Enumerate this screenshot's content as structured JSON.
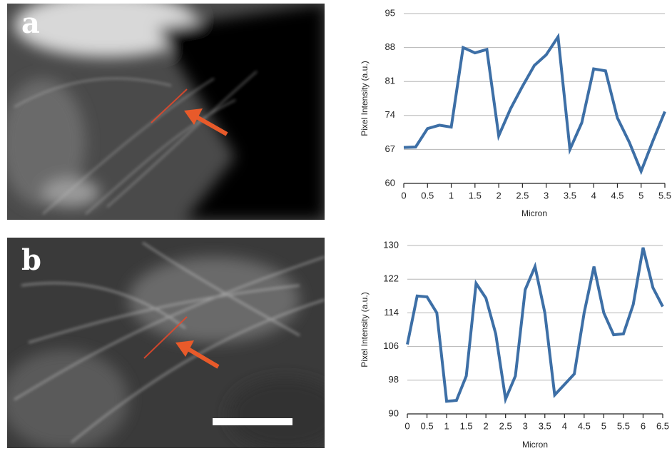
{
  "panel_labels": [
    "a",
    "b"
  ],
  "chart_data": [
    {
      "type": "line",
      "ylabel": "Pixel Intensity (a.u.)",
      "xlabel": "Micron",
      "x": [
        0,
        0.25,
        0.5,
        0.75,
        1,
        1.25,
        1.5,
        1.75,
        2,
        2.25,
        2.5,
        2.75,
        3,
        3.25,
        3.5,
        3.75,
        4,
        4.25,
        4.5,
        4.75,
        5,
        5.25,
        5.5
      ],
      "values": [
        67.4,
        67.5,
        71.3,
        72,
        71.6,
        88,
        86.9,
        87.6,
        69.8,
        75.4,
        80,
        84.3,
        86.5,
        90.2,
        67,
        72.5,
        83.6,
        83.2,
        73.5,
        68.5,
        62.5,
        68.8,
        74.8
      ],
      "color": "#3d6fa6",
      "xlim": [
        0,
        5.5
      ],
      "xticks": [
        0,
        0.5,
        1,
        1.5,
        2,
        2.5,
        3,
        3.5,
        4,
        4.5,
        5,
        5.5
      ],
      "ylim": [
        60,
        95
      ],
      "yticks": [
        60,
        67,
        74,
        81,
        88,
        95
      ],
      "grid": true
    },
    {
      "type": "line",
      "ylabel": "Pixel Intensity (a.u.)",
      "xlabel": "Micron",
      "x": [
        0,
        0.25,
        0.5,
        0.75,
        1,
        1.25,
        1.5,
        1.75,
        2,
        2.25,
        2.5,
        2.75,
        3,
        3.25,
        3.5,
        3.75,
        4,
        4.25,
        4.5,
        4.75,
        5,
        5.25,
        5.5,
        5.75,
        6,
        6.25,
        6.5
      ],
      "values": [
        106.5,
        118,
        117.8,
        114,
        93,
        93.2,
        99,
        121,
        117.5,
        109,
        93.5,
        99,
        119.5,
        125,
        114,
        94.5,
        97,
        99.5,
        114,
        125,
        114,
        108.8,
        109,
        116,
        129.5,
        120,
        115.5
      ],
      "color": "#3d6fa6",
      "xlim": [
        0,
        6.5
      ],
      "xticks": [
        0,
        0.5,
        1,
        1.5,
        2,
        2.5,
        3,
        3.5,
        4,
        4.5,
        5,
        5.5,
        6,
        6.5
      ],
      "ylim": [
        90,
        130
      ],
      "yticks": [
        90,
        98,
        106,
        114,
        122,
        130
      ],
      "grid": true
    }
  ]
}
